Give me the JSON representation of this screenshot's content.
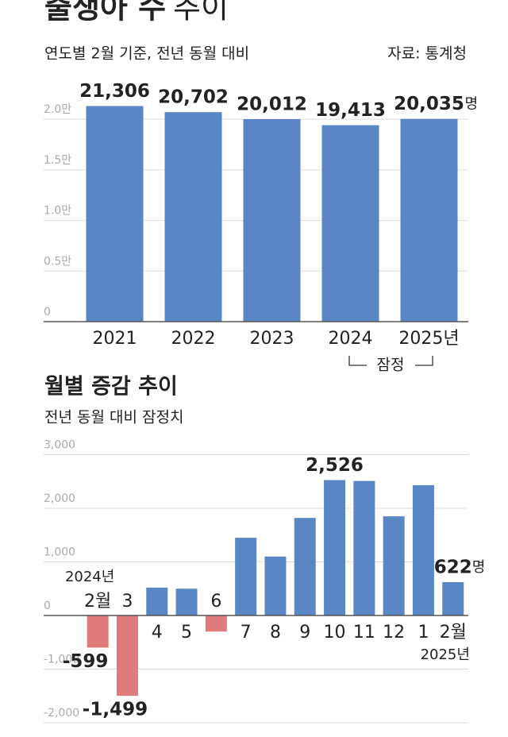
{
  "header": {
    "title": "출생아 수",
    "title_suffix": "추이",
    "subtitle": "연도별 2월 기준, 전년 동월 대비",
    "source": "자료: 통계청"
  },
  "chart_data": [
    {
      "type": "bar",
      "categories": [
        "2021",
        "2022",
        "2023",
        "2024",
        "2025년"
      ],
      "values": [
        21306,
        20702,
        20012,
        19413,
        20035
      ],
      "value_labels": [
        "21,306",
        "20,702",
        "20,012",
        "19,413",
        "20,035"
      ],
      "unit": "명",
      "color": "#5b86c6",
      "ylim": [
        0,
        23000
      ],
      "yticks": [
        0,
        {
          "value": 5000,
          "label": "0.5만"
        },
        {
          "value": 10000,
          "label": "1.0만"
        },
        {
          "value": 15000,
          "label": "1.5만"
        },
        {
          "value": 20000,
          "label": "2.0만"
        }
      ],
      "grid": true,
      "annotation": "잠정"
    },
    {
      "type": "bar",
      "title": "월별 증감 추이",
      "subtitle": "전년 동월 대비 잠정치",
      "categories": [
        "2월",
        "3",
        "4",
        "5",
        "6",
        "7",
        "8",
        "9",
        "10",
        "11",
        "12",
        "1",
        "2월"
      ],
      "values": [
        -599,
        -1499,
        520,
        500,
        -300,
        1450,
        1100,
        1820,
        2526,
        2510,
        1850,
        2430,
        622
      ],
      "value_labels": [
        "-599",
        "-1,499",
        null,
        null,
        null,
        null,
        null,
        null,
        "2,526",
        null,
        null,
        null,
        "622"
      ],
      "unit": "명",
      "color": "#5b86c6",
      "negative_color": "#e07b7b",
      "ylim": [
        -2000,
        3000
      ],
      "yticks": [
        {
          "value": -2000,
          "label": "-2,000"
        },
        {
          "value": -1000,
          "label": "-1,000"
        },
        0,
        {
          "value": 1000,
          "label": "1,000"
        },
        {
          "value": 2000,
          "label": "2,000"
        },
        {
          "value": 3000,
          "label": "3,000"
        }
      ],
      "grid": true,
      "start_year": "2024년",
      "end_year": "2025년"
    }
  ]
}
